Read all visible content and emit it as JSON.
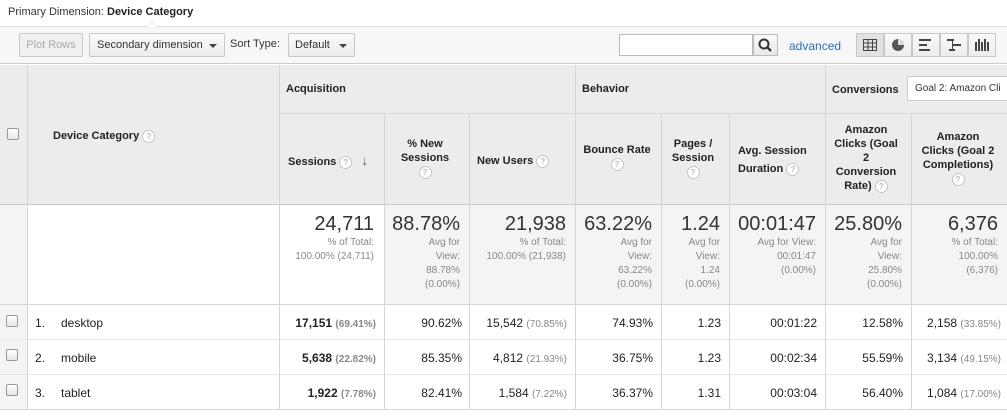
{
  "primary_dimension": {
    "label": "Primary Dimension:",
    "value": "Device Category"
  },
  "toolbar": {
    "plot_rows": "Plot Rows",
    "secondary_dimension": "Secondary dimension",
    "sort_type_label": "Sort Type:",
    "sort_type_value": "Default",
    "search_value": "",
    "advanced": "advanced",
    "view_icons": [
      "table-view-icon",
      "pie-view-icon",
      "performance-view-icon",
      "comparison-view-icon",
      "term-cloud-view-icon"
    ]
  },
  "table": {
    "dimension_header": "Device Category",
    "groups": {
      "acquisition": "Acquisition",
      "behavior": "Behavior",
      "conversions": "Conversions"
    },
    "goal_select": "Goal 2: Amazon Cli",
    "columns": {
      "sessions": "Sessions",
      "new_sessions": [
        "% New",
        "Sessions"
      ],
      "new_users": "New Users",
      "bounce_rate": "Bounce Rate",
      "pages_session": [
        "Pages /",
        "Session"
      ],
      "avg_duration": [
        "Avg. Session",
        "Duration"
      ],
      "conv_rate": [
        "Amazon",
        "Clicks (Goal",
        "2",
        "Conversion",
        "Rate)"
      ],
      "completions": [
        "Amazon",
        "Clicks (Goal 2",
        "Completions)"
      ]
    },
    "totals": {
      "sessions": {
        "value": "24,711",
        "sub": [
          "% of Total:",
          "100.00% (24,711)"
        ]
      },
      "new_sessions": {
        "value": "88.78%",
        "sub": [
          "Avg for",
          "View:",
          "88.78%",
          "(0.00%)"
        ]
      },
      "new_users": {
        "value": "21,938",
        "sub": [
          "% of Total:",
          "100.00% (21,938)"
        ]
      },
      "bounce_rate": {
        "value": "63.22%",
        "sub": [
          "Avg for",
          "View:",
          "63.22%",
          "(0.00%)"
        ]
      },
      "pages_session": {
        "value": "1.24",
        "sub": [
          "Avg for",
          "View:",
          "1.24",
          "(0.00%)"
        ]
      },
      "avg_duration": {
        "value": "00:01:47",
        "sub": [
          "Avg for View:",
          "00:01:47",
          "(0.00%)"
        ]
      },
      "conv_rate": {
        "value": "25.80%",
        "sub": [
          "Avg for",
          "View:",
          "25.80%",
          "(0.00%)"
        ]
      },
      "completions": {
        "value": "6,376",
        "sub": [
          "% of Total:",
          "100.00%",
          "(6,376)"
        ]
      }
    },
    "rows": [
      {
        "num": "1.",
        "device": "desktop",
        "sessions": "17,151",
        "sessions_pct": "(69.41%)",
        "new_sessions": "90.62%",
        "new_users": "15,542",
        "new_users_pct": "(70.85%)",
        "bounce_rate": "74.93%",
        "pages_session": "1.23",
        "avg_duration": "00:01:22",
        "conv_rate": "12.58%",
        "completions": "2,158",
        "completions_pct": "(33.85%)"
      },
      {
        "num": "2.",
        "device": "mobile",
        "sessions": "5,638",
        "sessions_pct": "(22.82%)",
        "new_sessions": "85.35%",
        "new_users": "4,812",
        "new_users_pct": "(21.93%)",
        "bounce_rate": "36.75%",
        "pages_session": "1.23",
        "avg_duration": "00:02:34",
        "conv_rate": "55.59%",
        "completions": "3,134",
        "completions_pct": "(49.15%)"
      },
      {
        "num": "3.",
        "device": "tablet",
        "sessions": "1,922",
        "sessions_pct": "(7.78%)",
        "new_sessions": "82.41%",
        "new_users": "1,584",
        "new_users_pct": "(7.22%)",
        "bounce_rate": "36.37%",
        "pages_session": "1.31",
        "avg_duration": "00:03:04",
        "conv_rate": "56.40%",
        "completions": "1,084",
        "completions_pct": "(17.00%)"
      }
    ]
  }
}
